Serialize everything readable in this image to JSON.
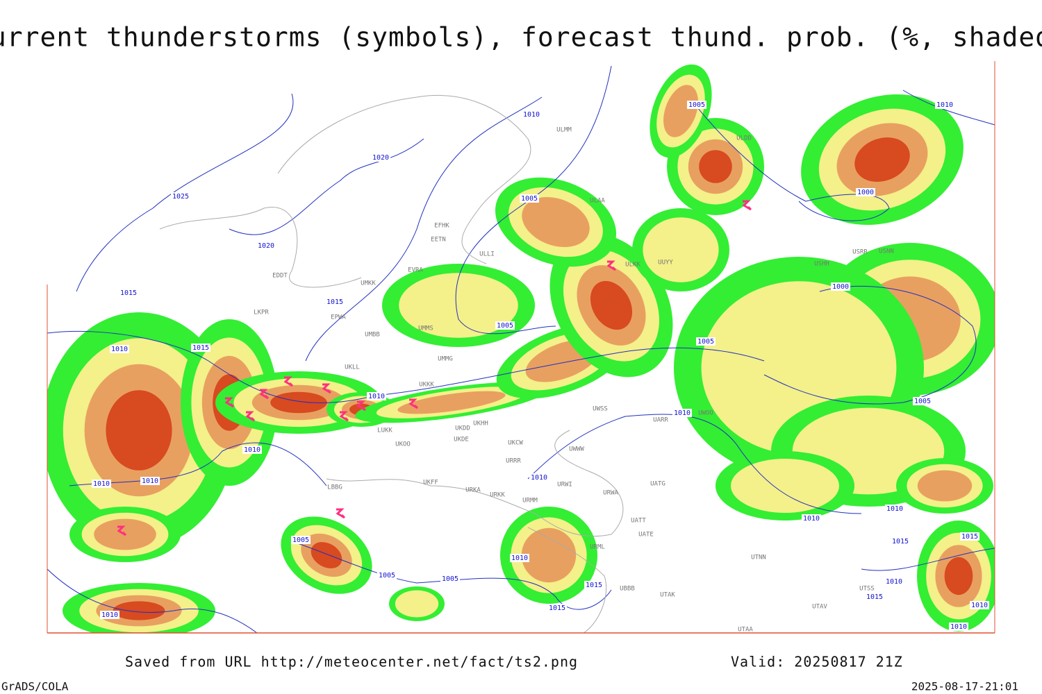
{
  "title": "Current thunderstorms (symbols), forecast thund. prob. (%, shaded)",
  "map": {
    "isobar_labels": [
      "1010",
      "1005",
      "1010",
      "1020",
      "1025",
      "1005",
      "1000",
      "1020",
      "1015",
      "1015",
      "1000",
      "1005",
      "1005",
      "1010",
      "1015",
      "1010",
      "1005",
      "1010",
      "1010",
      "1010",
      "1010",
      "1010",
      "1010",
      "1010",
      "1005",
      "1010",
      "1015",
      "1015",
      "1005",
      "1005",
      "1015",
      "1010",
      "1015",
      "1010",
      "1015",
      "1010",
      "1010"
    ],
    "stations": [
      "ULMM",
      "ULDD",
      "ULAA",
      "EFHK",
      "EETN",
      "ULLI",
      "UUYY",
      "ULKK",
      "EVRA",
      "USHH",
      "USRR",
      "USNN",
      "EDDT",
      "UMKK",
      "EPWA",
      "UMMS",
      "LKPR",
      "UMBB",
      "UMMG",
      "UKLL",
      "UKKK",
      "LUKK",
      "UKOO",
      "UKDD",
      "UKHH",
      "UKDE",
      "UKCW",
      "UWSS",
      "UWWW",
      "URRR",
      "UWOO",
      "UARR",
      "UKFF",
      "URKA",
      "URKK",
      "URWI",
      "URWA",
      "UATG",
      "URMM",
      "UATT",
      "UATE",
      "URML",
      "UTNN",
      "UBBB",
      "UTAK",
      "UTSS",
      "UTAV",
      "UTAA",
      "LBBG"
    ]
  },
  "footer": {
    "source": "Saved from URL http://meteocenter.net/fact/ts2.png",
    "valid": "Valid: 20250817 21Z",
    "software": "GrADS/COLA",
    "timestamp": "2025-08-17-21:01"
  }
}
